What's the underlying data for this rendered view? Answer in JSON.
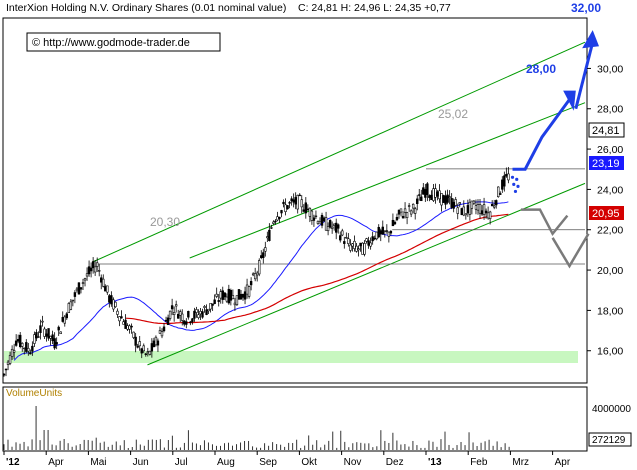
{
  "header": {
    "title": "InterXion Holding N.V. Ordinary Shares (0.01 nominal value)",
    "quote": "C: 24,81 H: 24,96 L: 24,35 +0,77",
    "copyright": "© http://www.godmode-trader.de"
  },
  "chart_data": {
    "type": "candlestick",
    "title": "InterXion Holding N.V. Ordinary Shares (0.01 nominal value)",
    "ylim": [
      14.5,
      32.5
    ],
    "yticks": [
      16,
      18,
      20,
      22,
      24,
      26,
      28,
      30
    ],
    "ytick_labels": [
      "16,00",
      "18,00",
      "20,00",
      "22,00",
      "24,00",
      "26,00",
      "28,00",
      "30,00"
    ],
    "months": [
      "'12",
      "Apr",
      "Mai",
      "Jun",
      "Jul",
      "Aug",
      "Sep",
      "Okt",
      "Nov",
      "Dez",
      "'13",
      "Feb",
      "Mrz",
      "Apr"
    ],
    "month_index": [
      0,
      1,
      2,
      3,
      4,
      5,
      6,
      7,
      8,
      9,
      10,
      11,
      12,
      13
    ],
    "closes": [
      [
        0.0,
        14.8
      ],
      [
        0.3,
        16.6
      ],
      [
        0.6,
        16.0
      ],
      [
        0.9,
        17.2
      ],
      [
        1.2,
        16.4
      ],
      [
        1.5,
        18.0
      ],
      [
        1.8,
        19.2
      ],
      [
        2.0,
        19.8
      ],
      [
        2.2,
        20.3
      ],
      [
        2.5,
        18.6
      ],
      [
        2.8,
        17.6
      ],
      [
        3.0,
        17.0
      ],
      [
        3.2,
        16.2
      ],
      [
        3.4,
        15.7
      ],
      [
        3.6,
        16.4
      ],
      [
        3.8,
        17.2
      ],
      [
        4.0,
        18.2
      ],
      [
        4.3,
        17.6
      ],
      [
        4.6,
        17.8
      ],
      [
        4.9,
        18.2
      ],
      [
        5.2,
        18.8
      ],
      [
        5.5,
        18.6
      ],
      [
        5.8,
        19.0
      ],
      [
        6.1,
        20.4
      ],
      [
        6.4,
        22.6
      ],
      [
        6.7,
        23.2
      ],
      [
        7.0,
        23.4
      ],
      [
        7.3,
        22.8
      ],
      [
        7.6,
        22.3
      ],
      [
        7.9,
        22.0
      ],
      [
        8.2,
        21.2
      ],
      [
        8.5,
        21.0
      ],
      [
        8.8,
        21.8
      ],
      [
        9.1,
        21.8
      ],
      [
        9.4,
        22.8
      ],
      [
        9.7,
        23.0
      ],
      [
        10.0,
        24.0
      ],
      [
        10.3,
        23.6
      ],
      [
        10.6,
        23.4
      ],
      [
        10.9,
        22.9
      ],
      [
        11.2,
        23.2
      ],
      [
        11.5,
        22.8
      ],
      [
        11.8,
        24.2
      ],
      [
        12.0,
        24.81
      ]
    ],
    "volume_ticks": [
      "4000000",
      "272129"
    ],
    "volume_label": "VolumeUnits",
    "last_price": "24,81",
    "sma_a_value": "23,19",
    "sma_b_value": "20,95",
    "annotations": [
      "25,02",
      "20,30",
      "28,00",
      "32,00"
    ],
    "colors": {
      "candles": "#000000",
      "sma_blue": "#1a1aff",
      "sma_red": "#d40000",
      "channel_green": "#009a00",
      "support_zone": "#c8f7c0",
      "forecast_blue": "#1e3ee6",
      "forecast_gray": "#7a7a7a"
    }
  }
}
